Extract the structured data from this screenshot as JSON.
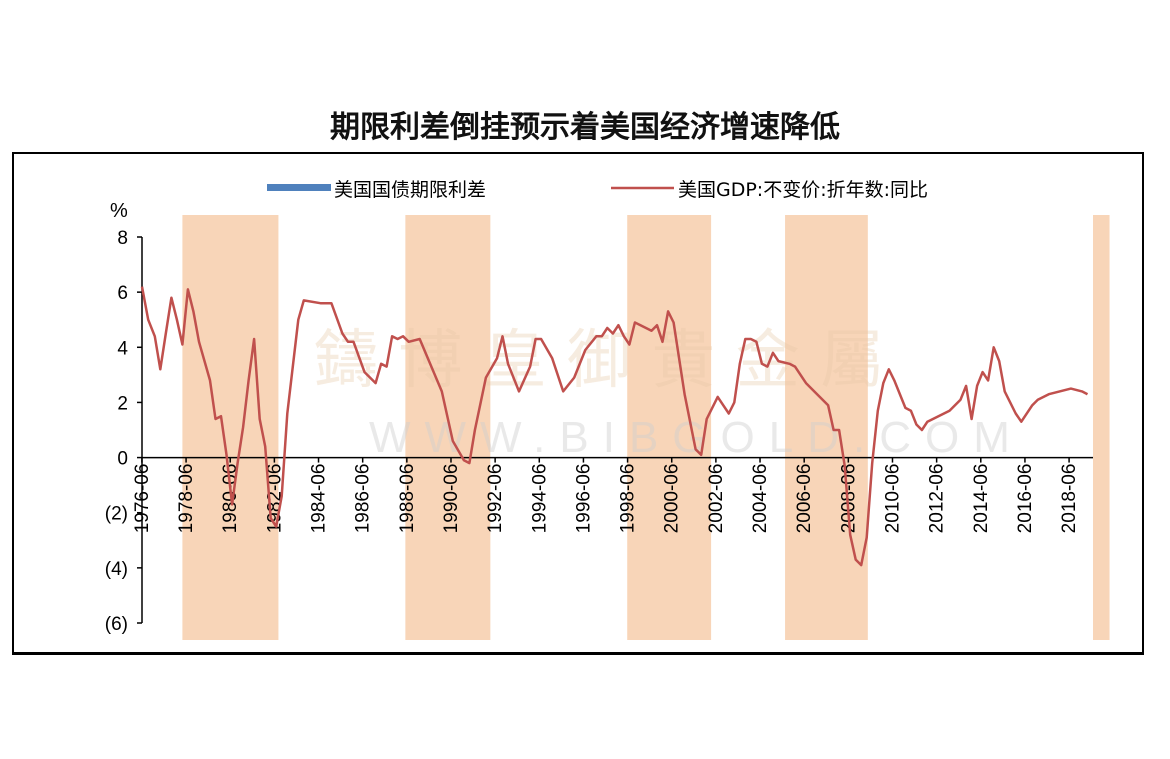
{
  "title": "期限利差倒挂预示着美国经济增速降低",
  "watermark": {
    "chinese": "鑄 博 皇 御 貴 金 屬",
    "english": "WWW.BIBGOLD.COM"
  },
  "chart_data": {
    "type": "line",
    "unit": "%",
    "ylim": [
      -6,
      8
    ],
    "yticks": [
      8,
      6,
      4,
      2,
      0,
      -2,
      -4,
      -6
    ],
    "ytick_labels": [
      "8",
      "6",
      "4",
      "2",
      "0",
      "(2)",
      "(4)",
      "(6)"
    ],
    "xlim": [
      1976.42,
      2019.5
    ],
    "xtick_labels": [
      "1976-06",
      "1978-06",
      "1980-06",
      "1982-06",
      "1984-06",
      "1986-06",
      "1988-06",
      "1990-06",
      "1992-06",
      "1994-06",
      "1996-06",
      "1998-06",
      "2000-06",
      "2002-06",
      "2004-06",
      "2006-06",
      "2008-06",
      "2010-06",
      "2012-06",
      "2014-06",
      "2016-06",
      "2018-06"
    ],
    "legend_position": "top-center",
    "colors": {
      "line": "#c0504d",
      "band": "#f8d5b8",
      "spread_legend": "#4f81bd"
    },
    "shaded_periods": [
      {
        "start": 1978.25,
        "end": 1982.6
      },
      {
        "start": 1988.35,
        "end": 1992.2
      },
      {
        "start": 1998.4,
        "end": 2002.2
      },
      {
        "start": 2005.55,
        "end": 2009.3
      },
      {
        "start": 2019.5,
        "end": 2020.25
      }
    ],
    "series": [
      {
        "name": "美国国债期限利差",
        "style": "bar",
        "values": []
      },
      {
        "name": "美国GDP:不变价:折年数:同比",
        "style": "line",
        "points": [
          [
            1976.42,
            6.2
          ],
          [
            1976.7,
            5.0
          ],
          [
            1977.0,
            4.4
          ],
          [
            1977.25,
            3.2
          ],
          [
            1977.5,
            4.5
          ],
          [
            1977.75,
            5.8
          ],
          [
            1978.0,
            5.0
          ],
          [
            1978.25,
            4.1
          ],
          [
            1978.5,
            6.1
          ],
          [
            1978.75,
            5.3
          ],
          [
            1979.0,
            4.2
          ],
          [
            1979.5,
            2.8
          ],
          [
            1979.75,
            1.4
          ],
          [
            1980.0,
            1.5
          ],
          [
            1980.25,
            0.1
          ],
          [
            1980.5,
            -1.7
          ],
          [
            1980.75,
            -0.2
          ],
          [
            1981.0,
            1.1
          ],
          [
            1981.25,
            2.8
          ],
          [
            1981.5,
            4.3
          ],
          [
            1981.75,
            1.4
          ],
          [
            1982.0,
            0.4
          ],
          [
            1982.25,
            -2.2
          ],
          [
            1982.5,
            -2.5
          ],
          [
            1982.75,
            -1.4
          ],
          [
            1983.0,
            1.6
          ],
          [
            1983.5,
            5.0
          ],
          [
            1983.75,
            5.7
          ],
          [
            1984.5,
            5.6
          ],
          [
            1985.0,
            5.6
          ],
          [
            1985.5,
            4.5
          ],
          [
            1985.75,
            4.2
          ],
          [
            1986.0,
            4.2
          ],
          [
            1986.5,
            3.1
          ],
          [
            1987.0,
            2.7
          ],
          [
            1987.25,
            3.4
          ],
          [
            1987.5,
            3.3
          ],
          [
            1987.75,
            4.4
          ],
          [
            1988.0,
            4.3
          ],
          [
            1988.25,
            4.4
          ],
          [
            1988.5,
            4.2
          ],
          [
            1989.0,
            4.3
          ],
          [
            1990.0,
            2.4
          ],
          [
            1990.5,
            0.6
          ],
          [
            1991.0,
            -0.1
          ],
          [
            1991.25,
            -0.2
          ],
          [
            1991.5,
            1.0
          ],
          [
            1992.0,
            2.9
          ],
          [
            1992.5,
            3.6
          ],
          [
            1992.75,
            4.4
          ],
          [
            1993.0,
            3.4
          ],
          [
            1993.5,
            2.4
          ],
          [
            1994.0,
            3.3
          ],
          [
            1994.25,
            4.3
          ],
          [
            1994.5,
            4.3
          ],
          [
            1995.0,
            3.6
          ],
          [
            1995.5,
            2.4
          ],
          [
            1996.0,
            2.9
          ],
          [
            1996.5,
            3.9
          ],
          [
            1997.0,
            4.4
          ],
          [
            1997.25,
            4.4
          ],
          [
            1997.5,
            4.7
          ],
          [
            1997.75,
            4.5
          ],
          [
            1998.0,
            4.8
          ],
          [
            1998.25,
            4.4
          ],
          [
            1998.5,
            4.1
          ],
          [
            1998.75,
            4.9
          ],
          [
            1999.0,
            4.8
          ],
          [
            1999.5,
            4.6
          ],
          [
            1999.75,
            4.8
          ],
          [
            2000.0,
            4.2
          ],
          [
            2000.25,
            5.3
          ],
          [
            2000.5,
            4.9
          ],
          [
            2001.0,
            2.3
          ],
          [
            2001.5,
            0.3
          ],
          [
            2001.75,
            0.1
          ],
          [
            2002.0,
            1.4
          ],
          [
            2002.5,
            2.2
          ],
          [
            2002.75,
            1.9
          ],
          [
            2003.0,
            1.6
          ],
          [
            2003.25,
            2.0
          ],
          [
            2003.5,
            3.4
          ],
          [
            2003.75,
            4.3
          ],
          [
            2004.0,
            4.3
          ],
          [
            2004.25,
            4.2
          ],
          [
            2004.5,
            3.4
          ],
          [
            2004.75,
            3.3
          ],
          [
            2005.0,
            3.8
          ],
          [
            2005.25,
            3.5
          ],
          [
            2005.75,
            3.4
          ],
          [
            2006.0,
            3.3
          ],
          [
            2006.5,
            2.7
          ],
          [
            2007.0,
            2.3
          ],
          [
            2007.5,
            1.9
          ],
          [
            2007.75,
            1.0
          ],
          [
            2008.0,
            1.0
          ],
          [
            2008.25,
            -0.3
          ],
          [
            2008.5,
            -2.8
          ],
          [
            2008.75,
            -3.7
          ],
          [
            2009.0,
            -3.9
          ],
          [
            2009.25,
            -2.9
          ],
          [
            2009.5,
            -0.2
          ],
          [
            2009.75,
            1.7
          ],
          [
            2010.0,
            2.7
          ],
          [
            2010.25,
            3.2
          ],
          [
            2010.5,
            2.8
          ],
          [
            2011.0,
            1.8
          ],
          [
            2011.25,
            1.7
          ],
          [
            2011.5,
            1.2
          ],
          [
            2011.75,
            1.0
          ],
          [
            2012.0,
            1.3
          ],
          [
            2013.0,
            1.7
          ],
          [
            2013.5,
            2.1
          ],
          [
            2013.75,
            2.6
          ],
          [
            2014.0,
            1.4
          ],
          [
            2014.25,
            2.6
          ],
          [
            2014.5,
            3.1
          ],
          [
            2014.75,
            2.8
          ],
          [
            2015.0,
            4.0
          ],
          [
            2015.25,
            3.5
          ],
          [
            2015.5,
            2.4
          ],
          [
            2016.0,
            1.6
          ],
          [
            2016.25,
            1.3
          ],
          [
            2016.75,
            1.9
          ],
          [
            2017.0,
            2.1
          ],
          [
            2017.5,
            2.3
          ],
          [
            2018.5,
            2.5
          ],
          [
            2019.0,
            2.4
          ],
          [
            2019.25,
            2.3
          ]
        ]
      }
    ]
  }
}
